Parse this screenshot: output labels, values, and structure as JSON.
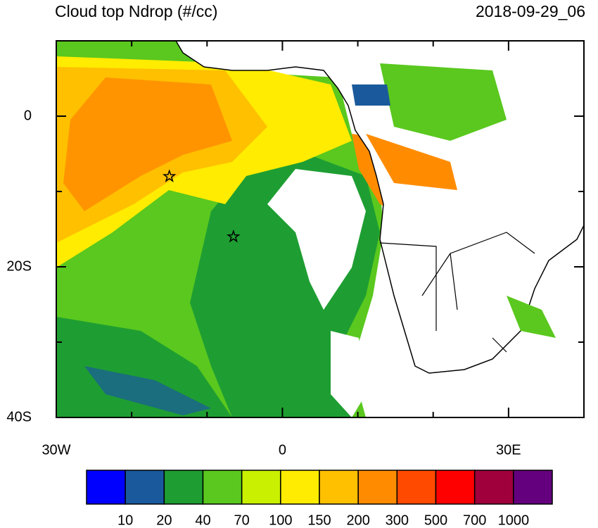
{
  "map": {
    "title": "Cloud top Ndrop (#/cc)",
    "date": "2018-09-29_06",
    "xlim": [
      -30,
      40
    ],
    "ylim": [
      -40,
      10
    ],
    "xticks": [
      {
        "value": -30,
        "label": "30W"
      },
      0,
      {
        "value": 30,
        "label": "30E"
      }
    ],
    "yticks": [
      0,
      {
        "value": -20,
        "label": "20S"
      },
      {
        "value": -40,
        "label": "40S"
      }
    ],
    "xminor": [
      -20,
      -10,
      10,
      20,
      40
    ],
    "yminor": [
      10,
      -10,
      -30
    ],
    "markers": [
      {
        "lon": -15,
        "lat": -8
      },
      {
        "lon": -6.5,
        "lat": -16
      }
    ],
    "colorbar": {
      "labels": [
        10,
        20,
        40,
        70,
        100,
        150,
        200,
        300,
        500,
        700,
        1000
      ],
      "colors": [
        "#0000ff",
        "#1a5a9c",
        "#1e9e32",
        "#5ac81e",
        "#c8f000",
        "#ffec00",
        "#ffc000",
        "#ff8c00",
        "#ff4a00",
        "#ff0000",
        "#a0003c",
        "#64007d"
      ]
    }
  }
}
